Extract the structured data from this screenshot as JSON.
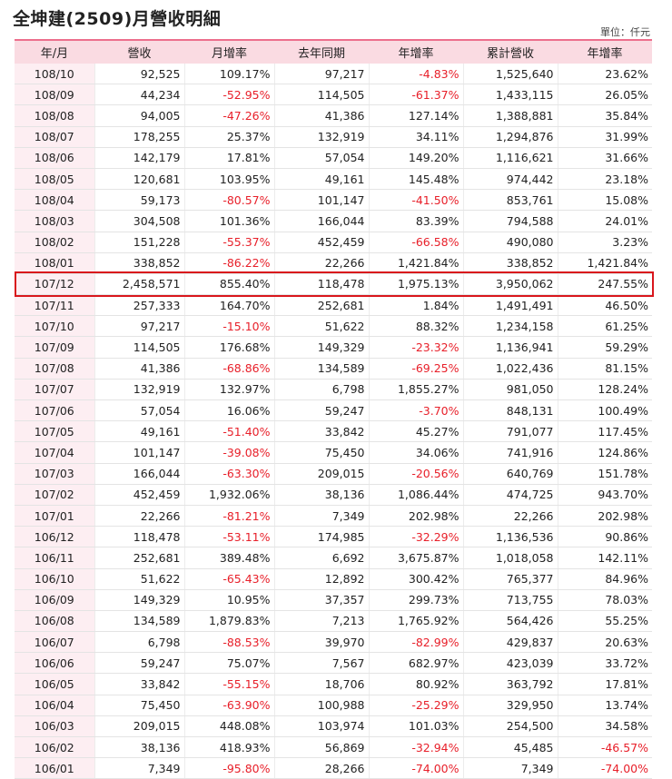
{
  "title": "全坤建(2509)月營收明細",
  "unit_label": "單位：仟元",
  "columns": [
    "年/月",
    "營收",
    "月增率",
    "去年同期",
    "年增率",
    "累計營收",
    "年增率"
  ],
  "highlight_color": "#d9161c",
  "negative_color": "#e8202a",
  "header_color": "#fadbe2",
  "rows": [
    [
      "108/10",
      "92,525",
      "109.17%",
      "97,217",
      "-4.83%",
      "1,525,640",
      "23.62%"
    ],
    [
      "108/09",
      "44,234",
      "-52.95%",
      "114,505",
      "-61.37%",
      "1,433,115",
      "26.05%"
    ],
    [
      "108/08",
      "94,005",
      "-47.26%",
      "41,386",
      "127.14%",
      "1,388,881",
      "35.84%"
    ],
    [
      "108/07",
      "178,255",
      "25.37%",
      "132,919",
      "34.11%",
      "1,294,876",
      "31.99%"
    ],
    [
      "108/06",
      "142,179",
      "17.81%",
      "57,054",
      "149.20%",
      "1,116,621",
      "31.66%"
    ],
    [
      "108/05",
      "120,681",
      "103.95%",
      "49,161",
      "145.48%",
      "974,442",
      "23.18%"
    ],
    [
      "108/04",
      "59,173",
      "-80.57%",
      "101,147",
      "-41.50%",
      "853,761",
      "15.08%"
    ],
    [
      "108/03",
      "304,508",
      "101.36%",
      "166,044",
      "83.39%",
      "794,588",
      "24.01%"
    ],
    [
      "108/02",
      "151,228",
      "-55.37%",
      "452,459",
      "-66.58%",
      "490,080",
      "3.23%"
    ],
    [
      "108/01",
      "338,852",
      "-86.22%",
      "22,266",
      "1,421.84%",
      "338,852",
      "1,421.84%"
    ],
    [
      "107/12",
      "2,458,571",
      "855.40%",
      "118,478",
      "1,975.13%",
      "3,950,062",
      "247.55%"
    ],
    [
      "107/11",
      "257,333",
      "164.70%",
      "252,681",
      "1.84%",
      "1,491,491",
      "46.50%"
    ],
    [
      "107/10",
      "97,217",
      "-15.10%",
      "51,622",
      "88.32%",
      "1,234,158",
      "61.25%"
    ],
    [
      "107/09",
      "114,505",
      "176.68%",
      "149,329",
      "-23.32%",
      "1,136,941",
      "59.29%"
    ],
    [
      "107/08",
      "41,386",
      "-68.86%",
      "134,589",
      "-69.25%",
      "1,022,436",
      "81.15%"
    ],
    [
      "107/07",
      "132,919",
      "132.97%",
      "6,798",
      "1,855.27%",
      "981,050",
      "128.24%"
    ],
    [
      "107/06",
      "57,054",
      "16.06%",
      "59,247",
      "-3.70%",
      "848,131",
      "100.49%"
    ],
    [
      "107/05",
      "49,161",
      "-51.40%",
      "33,842",
      "45.27%",
      "791,077",
      "117.45%"
    ],
    [
      "107/04",
      "101,147",
      "-39.08%",
      "75,450",
      "34.06%",
      "741,916",
      "124.86%"
    ],
    [
      "107/03",
      "166,044",
      "-63.30%",
      "209,015",
      "-20.56%",
      "640,769",
      "151.78%"
    ],
    [
      "107/02",
      "452,459",
      "1,932.06%",
      "38,136",
      "1,086.44%",
      "474,725",
      "943.70%"
    ],
    [
      "107/01",
      "22,266",
      "-81.21%",
      "7,349",
      "202.98%",
      "22,266",
      "202.98%"
    ],
    [
      "106/12",
      "118,478",
      "-53.11%",
      "174,985",
      "-32.29%",
      "1,136,536",
      "90.86%"
    ],
    [
      "106/11",
      "252,681",
      "389.48%",
      "6,692",
      "3,675.87%",
      "1,018,058",
      "142.11%"
    ],
    [
      "106/10",
      "51,622",
      "-65.43%",
      "12,892",
      "300.42%",
      "765,377",
      "84.96%"
    ],
    [
      "106/09",
      "149,329",
      "10.95%",
      "37,357",
      "299.73%",
      "713,755",
      "78.03%"
    ],
    [
      "106/08",
      "134,589",
      "1,879.83%",
      "7,213",
      "1,765.92%",
      "564,426",
      "55.25%"
    ],
    [
      "106/07",
      "6,798",
      "-88.53%",
      "39,970",
      "-82.99%",
      "429,837",
      "20.63%"
    ],
    [
      "106/06",
      "59,247",
      "75.07%",
      "7,567",
      "682.97%",
      "423,039",
      "33.72%"
    ],
    [
      "106/05",
      "33,842",
      "-55.15%",
      "18,706",
      "80.92%",
      "363,792",
      "17.81%"
    ],
    [
      "106/04",
      "75,450",
      "-63.90%",
      "100,988",
      "-25.29%",
      "329,950",
      "13.74%"
    ],
    [
      "106/03",
      "209,015",
      "448.08%",
      "103,974",
      "101.03%",
      "254,500",
      "34.58%"
    ],
    [
      "106/02",
      "38,136",
      "418.93%",
      "56,869",
      "-32.94%",
      "45,485",
      "-46.57%"
    ],
    [
      "106/01",
      "7,349",
      "-95.80%",
      "28,266",
      "-74.00%",
      "7,349",
      "-74.00%"
    ]
  ]
}
